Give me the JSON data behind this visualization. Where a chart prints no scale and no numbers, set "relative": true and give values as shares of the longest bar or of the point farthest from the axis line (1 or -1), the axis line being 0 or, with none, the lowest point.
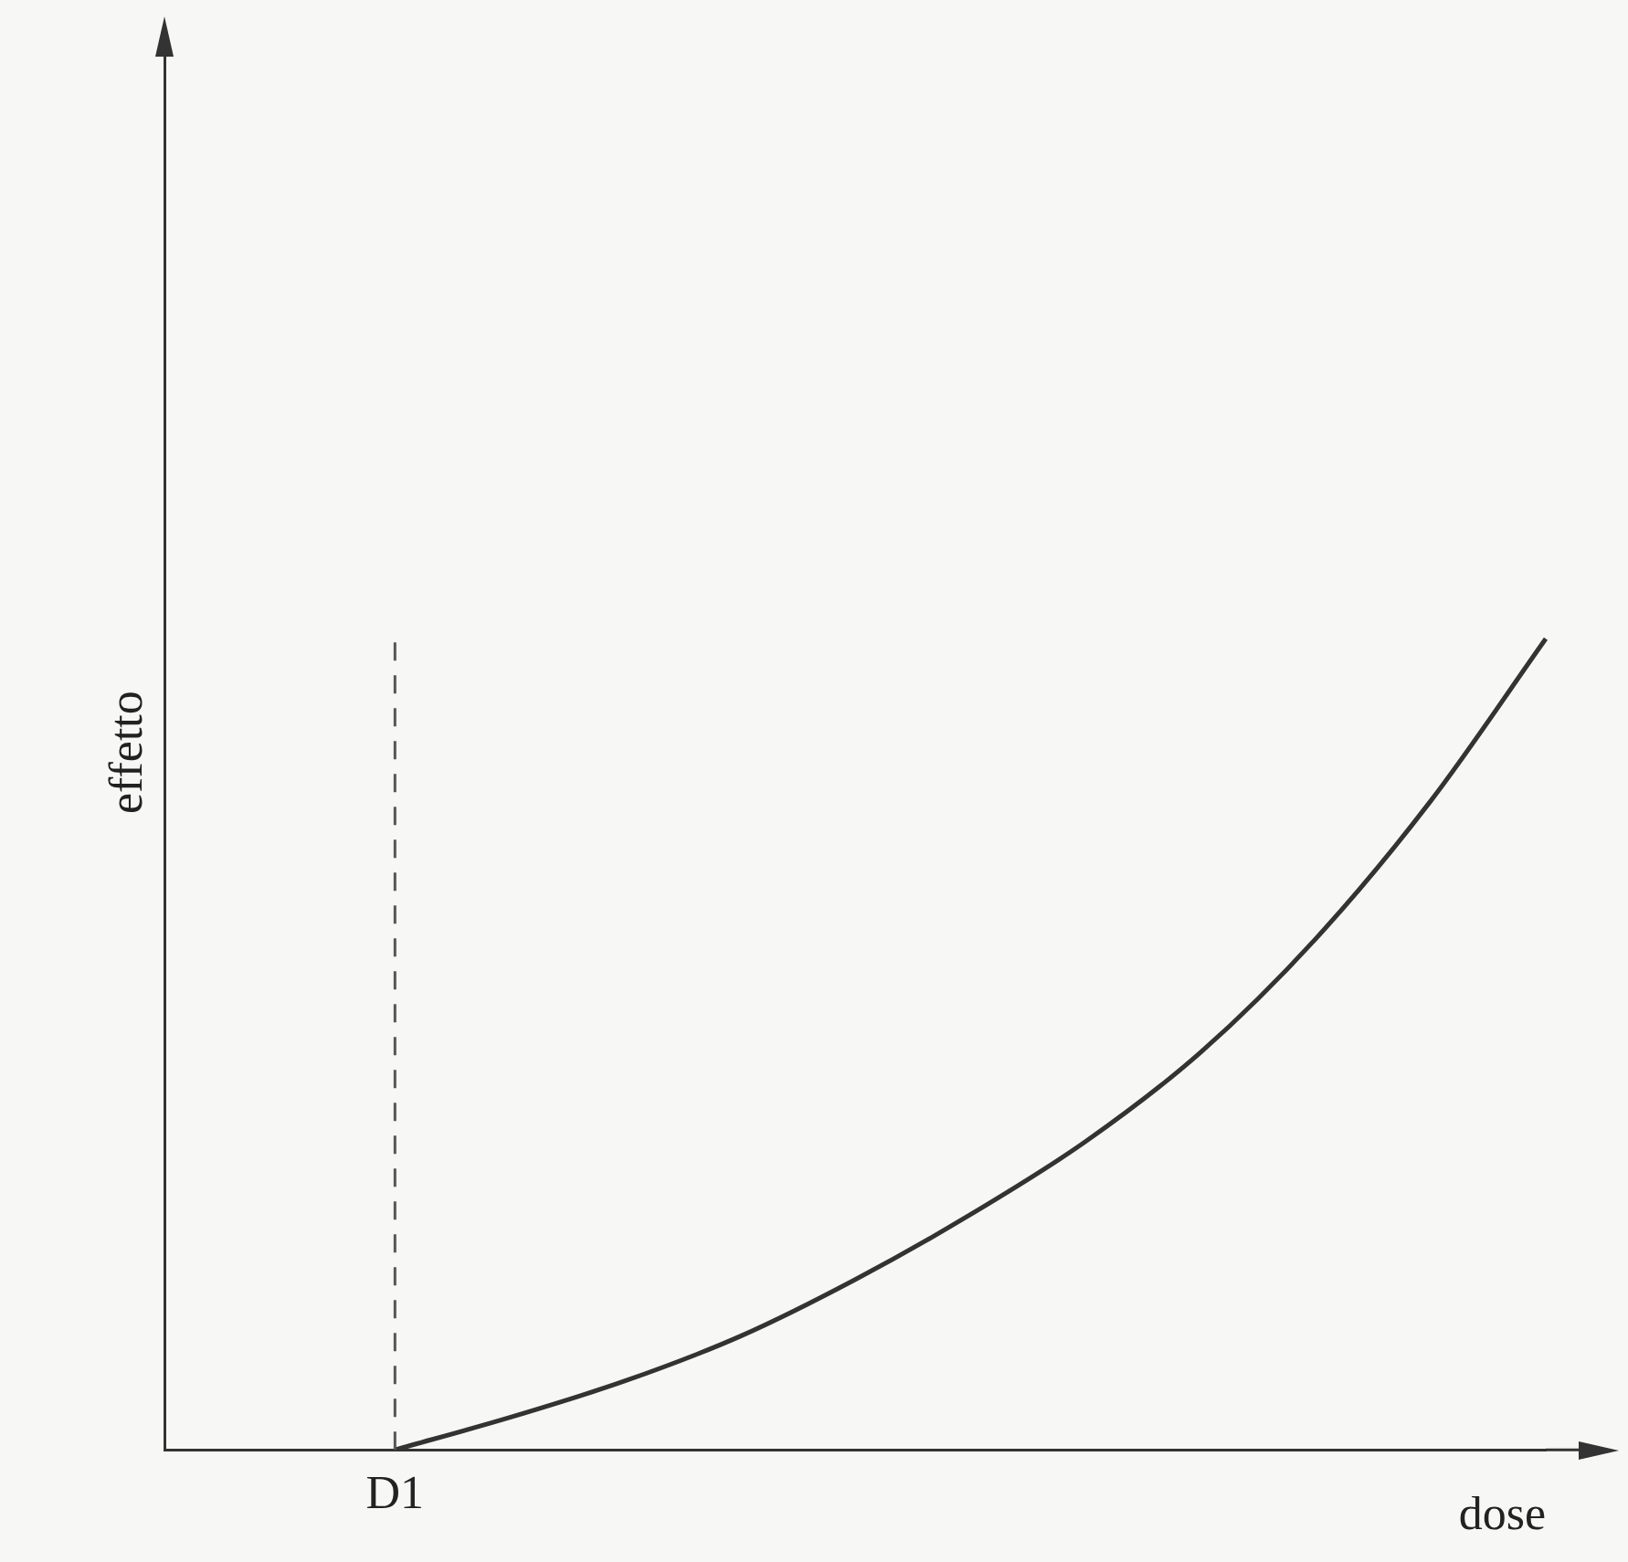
{
  "chart_data": {
    "type": "line",
    "relative": true,
    "xlabel": "dose",
    "ylabel": "effetto",
    "categories": [
      null,
      null,
      null,
      null,
      null,
      null,
      null,
      null,
      null,
      null,
      null,
      null,
      null
    ],
    "series": [
      {
        "color": "#333333",
        "values": [
          null,
          null,
          0,
          0.04,
          0.085,
          0.14,
          0.21,
          0.29,
          0.38,
          0.49,
          0.63,
          0.8,
          1
        ]
      }
    ],
    "annotations": [
      "D1"
    ],
    "grid": false,
    "legend": false,
    "marker": "none",
    "line_style": "solid"
  }
}
